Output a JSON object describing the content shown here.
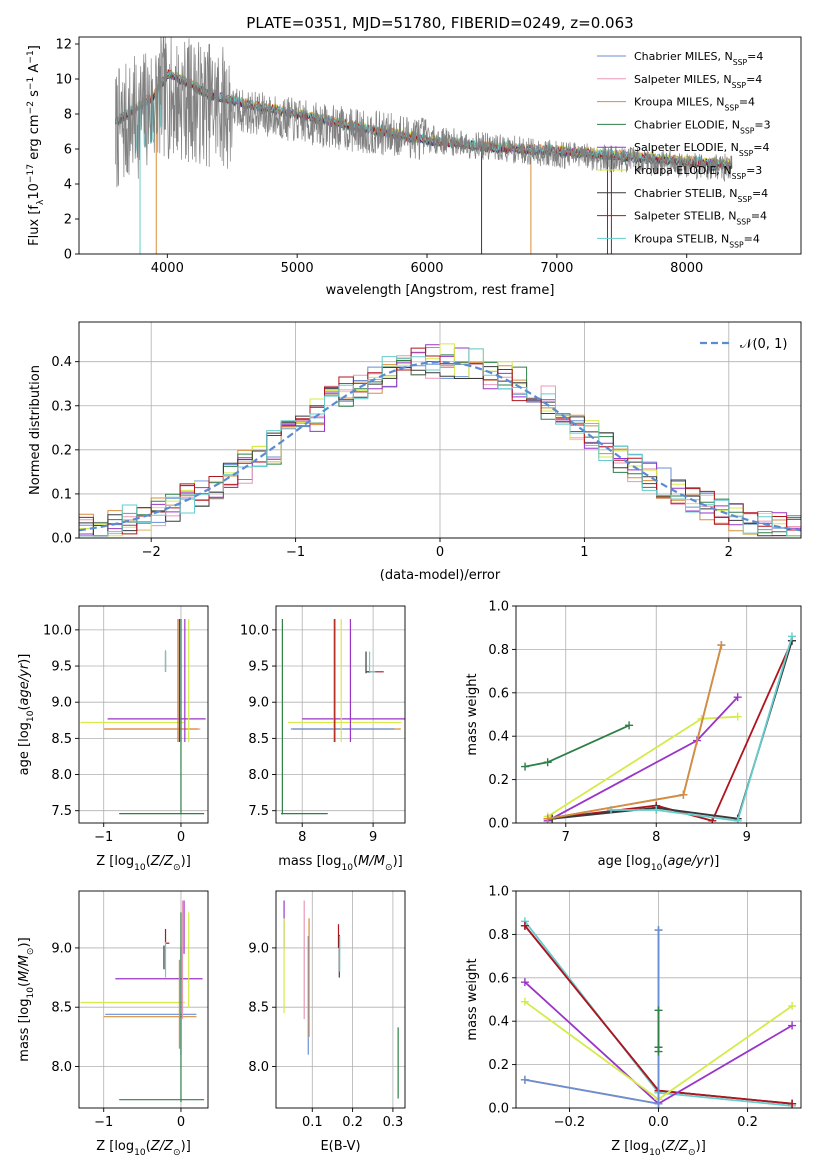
{
  "colors": {
    "Chabrier MILES": "#6a8fd6",
    "Salpeter MILES": "#e89ab8",
    "Kroupa MILES": "#d98d3a",
    "Chabrier ELODIE": "#2f7f48",
    "Salpeter ELODIE": "#9a35c8",
    "Kroupa ELODIE": "#d6ea4a",
    "Chabrier STELIB": "#3a3a3a",
    "Salpeter STELIB": "#b0141e",
    "Kroupa STELIB": "#66cccc"
  },
  "chart_data": [
    {
      "id": "spectrum",
      "type": "line",
      "title": "PLATE=0351, MJD=51780, FIBERID=0249, z=0.063",
      "xlabel": "wavelength [Angstrom, rest frame]",
      "ylabel": "Flux [f_λ10^-17 erg cm^-2 s^-1 A^-1]",
      "xlim": [
        3320,
        8880
      ],
      "ylim": [
        0,
        12.4
      ],
      "xticks": [
        4000,
        5000,
        6000,
        7000,
        8000
      ],
      "yticks": [
        0,
        2,
        4,
        6,
        8,
        10,
        12
      ],
      "grid": false,
      "legend_position": "top-right",
      "legend": [
        {
          "name": "Chabrier MILES",
          "nssp": "4"
        },
        {
          "name": "Salpeter MILES",
          "nssp": "4"
        },
        {
          "name": "Kroupa MILES",
          "nssp": "4"
        },
        {
          "name": "Chabrier ELODIE",
          "nssp": "3"
        },
        {
          "name": "Salpeter ELODIE",
          "nssp": "4"
        },
        {
          "name": "Kroupa ELODIE",
          "nssp": "3"
        },
        {
          "name": "Chabrier STELIB",
          "nssp": "4"
        },
        {
          "name": "Salpeter STELIB",
          "nssp": "4"
        },
        {
          "name": "Kroupa STELIB",
          "nssp": "4"
        }
      ],
      "data_series": {
        "name": "data",
        "x_range": [
          3600,
          8350
        ],
        "continuum": [
          [
            3600,
            7.0
          ],
          [
            3800,
            8.0
          ],
          [
            3950,
            9.0
          ],
          [
            4100,
            8.9
          ],
          [
            4500,
            8.3
          ],
          [
            5000,
            7.6
          ],
          [
            5500,
            7.0
          ],
          [
            6000,
            6.6
          ],
          [
            6500,
            6.1
          ],
          [
            7000,
            5.7
          ],
          [
            7500,
            5.4
          ],
          [
            8000,
            5.1
          ],
          [
            8350,
            4.9
          ]
        ]
      },
      "models_continuum": [
        [
          3600,
          7.6
        ],
        [
          3700,
          8.0
        ],
        [
          3900,
          9.1
        ],
        [
          4000,
          10.3
        ],
        [
          4100,
          10.0
        ],
        [
          4300,
          9.2
        ],
        [
          4600,
          8.6
        ],
        [
          5000,
          8.0
        ],
        [
          5500,
          7.2
        ],
        [
          6000,
          6.5
        ],
        [
          6500,
          6.1
        ],
        [
          7000,
          5.9
        ],
        [
          7500,
          5.6
        ],
        [
          8000,
          5.3
        ],
        [
          8350,
          5.1
        ]
      ]
    },
    {
      "id": "residuals",
      "type": "histogram",
      "xlabel": "(data-model)/error",
      "ylabel": "Normed distribution",
      "xlim": [
        -2.5,
        2.5
      ],
      "ylim": [
        0,
        0.49
      ],
      "xticks": [
        -2,
        -1,
        0,
        1,
        2
      ],
      "yticks": [
        0.0,
        0.1,
        0.2,
        0.3,
        0.4
      ],
      "grid": true,
      "legend_position": "top-right",
      "reference_curve": {
        "name": "N(0,1)",
        "mean": 0,
        "sigma": 1
      },
      "bin_width": 0.1
    },
    {
      "id": "age-vs-Z",
      "type": "errorbar",
      "xlabel": "Z [log10(Z/Z⊙)]",
      "ylabel": "age  [log10(age/yr)]",
      "xlim": [
        -1.32,
        0.35
      ],
      "ylim": [
        7.33,
        10.33
      ],
      "xticks": [
        -1,
        0
      ],
      "yticks": [
        7.5,
        8.0,
        8.5,
        9.0,
        9.5,
        10.0
      ],
      "grid": true,
      "points": [
        {
          "series": "Kroupa ELODIE",
          "x": -0.3,
          "xerr": [
            1.0,
            0.35
          ],
          "y": 8.72,
          "yerr": 0
        },
        {
          "series": "Salpeter ELODIE",
          "x": 0.0,
          "xerr": [
            0.95,
            0.32
          ],
          "y": 8.77,
          "yerr": 0
        },
        {
          "series": "Salpeter MILES",
          "x": 0.0,
          "xerr": [
            0.98,
            0.25
          ],
          "y": 8.63,
          "yerr": 0
        },
        {
          "series": "Kroupa MILES",
          "x": 0.0,
          "xerr": [
            1.0,
            0.22
          ],
          "y": 8.63,
          "yerr": 0
        },
        {
          "series": "Chabrier ELODIE",
          "x": -0.05,
          "xerr": [
            0.75,
            0.35
          ],
          "y": 7.46,
          "yerr": 0
        },
        {
          "series": "Chabrier STELIB",
          "x": -0.2,
          "xerr": [
            0.0,
            0.0
          ],
          "y": 9.42,
          "yerr": [
            0.0,
            0.28
          ]
        },
        {
          "series": "Kroupa STELIB",
          "x": -0.2,
          "xerr": [
            0.0,
            0.0
          ],
          "y": 9.42,
          "yerr": [
            0.0,
            0.3
          ]
        },
        {
          "series": "Salpeter STELIB",
          "x": -0.02,
          "xerr": 0,
          "y": 9.3,
          "yerr": [
            0.85,
            0.85
          ]
        },
        {
          "series": "Chabrier MILES",
          "x": 0.0,
          "xerr": 0,
          "y": 9.3,
          "yerr": [
            0.85,
            0.85
          ]
        },
        {
          "series": "Kroupa ELODIE",
          "x": 0.1,
          "xerr": 0,
          "y": 9.3,
          "yerr": [
            0.85,
            0.85
          ]
        },
        {
          "series": "Salpeter ELODIE",
          "x": 0.05,
          "xerr": 0,
          "y": 9.3,
          "yerr": [
            0.85,
            0.85
          ]
        },
        {
          "series": "Kroupa MILES",
          "x": -0.04,
          "xerr": 0,
          "y": 9.3,
          "yerr": [
            0.85,
            0.85
          ]
        },
        {
          "series": "Chabrier ELODIE",
          "x": 0.0,
          "xerr": 0,
          "y": 8.8,
          "yerr": [
            1.35,
            1.35
          ]
        }
      ]
    },
    {
      "id": "age-vs-mass",
      "type": "errorbar",
      "xlabel": "mass [log10(M/M⊙)]",
      "ylabel": "",
      "xlim": [
        7.63,
        9.45
      ],
      "ylim": [
        7.33,
        10.33
      ],
      "xticks": [
        8,
        9
      ],
      "yticks": [
        7.5,
        8.0,
        8.5,
        9.0,
        9.5,
        10.0
      ],
      "grid": true,
      "points": [
        {
          "series": "Kroupa ELODIE",
          "x": 8.7,
          "xerr": [
            0.9,
            0.7
          ],
          "y": 8.72,
          "yerr": 0
        },
        {
          "series": "Salpeter ELODIE",
          "x": 8.8,
          "xerr": [
            0.8,
            0.65
          ],
          "y": 8.77,
          "yerr": 0
        },
        {
          "series": "Kroupa MILES",
          "x": 8.54,
          "xerr": [
            0.67,
            0.85
          ],
          "y": 8.63,
          "yerr": 0
        },
        {
          "series": "Chabrier MILES",
          "x": 8.44,
          "xerr": [
            0.6,
            0.86
          ],
          "y": 8.63,
          "yerr": 0
        },
        {
          "series": "Chabrier ELODIE",
          "x": 8.0,
          "xerr": [
            0.3,
            0.36
          ],
          "y": 7.46,
          "yerr": 0
        },
        {
          "series": "Salpeter STELIB",
          "x": 9.0,
          "xerr": [
            0.1,
            0.15
          ],
          "y": 9.42,
          "yerr": 0
        },
        {
          "series": "Chabrier STELIB",
          "x": 8.92,
          "xerr": [
            0.0,
            0.05
          ],
          "y": 9.42,
          "yerr": 0
        },
        {
          "series": "Kroupa STELIB",
          "x": 8.95,
          "xerr": [
            0.0,
            0.08
          ],
          "y": 9.42,
          "yerr": 0
        },
        {
          "series": "Chabrier ELODIE",
          "x": 7.72,
          "xerr": 0,
          "y": 8.8,
          "yerr": [
            1.35,
            1.35
          ]
        },
        {
          "series": "Kroupa MILES",
          "x": 8.45,
          "xerr": 0,
          "y": 9.3,
          "yerr": [
            0.85,
            0.85
          ]
        },
        {
          "series": "Salpeter STELIB",
          "x": 8.46,
          "xerr": 0,
          "y": 9.3,
          "yerr": [
            0.85,
            0.85
          ]
        },
        {
          "series": "Kroupa ELODIE",
          "x": 8.55,
          "xerr": 0,
          "y": 9.3,
          "yerr": [
            0.85,
            0.85
          ]
        },
        {
          "series": "Salpeter ELODIE",
          "x": 8.68,
          "xerr": 0,
          "y": 9.3,
          "yerr": [
            0.85,
            0.85
          ]
        },
        {
          "series": "Chabrier STELIB",
          "x": 8.9,
          "xerr": 0,
          "y": 9.55,
          "yerr": [
            0.15,
            0.15
          ]
        },
        {
          "series": "Kroupa STELIB",
          "x": 8.95,
          "xerr": 0,
          "y": 9.55,
          "yerr": [
            0.15,
            0.15
          ]
        }
      ]
    },
    {
      "id": "massweight-vs-age",
      "type": "line",
      "xlabel": "age  [log10(age/yr)]",
      "ylabel": "mass weight",
      "xlim": [
        6.45,
        9.6
      ],
      "ylim": [
        0,
        1.0
      ],
      "xticks": [
        7,
        8,
        9
      ],
      "yticks": [
        0.0,
        0.2,
        0.4,
        0.6,
        0.8,
        1.0
      ],
      "grid": true,
      "series": [
        {
          "series": "Chabrier ELODIE",
          "x": [
            6.55,
            6.8,
            7.7
          ],
          "y": [
            0.26,
            0.28,
            0.45
          ]
        },
        {
          "series": "Kroupa ELODIE",
          "x": [
            6.8,
            8.5,
            8.9
          ],
          "y": [
            0.03,
            0.48,
            0.49
          ]
        },
        {
          "series": "Salpeter ELODIE",
          "x": [
            6.8,
            8.45,
            8.9
          ],
          "y": [
            0.01,
            0.38,
            0.58
          ]
        },
        {
          "series": "Salpeter STELIB",
          "x": [
            6.8,
            8.0,
            8.62,
            9.5
          ],
          "y": [
            0.02,
            0.08,
            0.01,
            0.84
          ]
        },
        {
          "series": "Chabrier STELIB",
          "x": [
            6.85,
            8.0,
            8.9,
            9.5
          ],
          "y": [
            0.02,
            0.07,
            0.02,
            0.84
          ]
        },
        {
          "series": "Kroupa STELIB",
          "x": [
            7.5,
            8.0,
            8.9,
            9.5
          ],
          "y": [
            0.06,
            0.06,
            0.01,
            0.86
          ]
        },
        {
          "series": "Chabrier MILES",
          "x": [
            6.8,
            8.3,
            8.72
          ],
          "y": [
            0.02,
            0.13,
            0.82
          ]
        },
        {
          "series": "Kroupa MILES",
          "x": [
            6.8,
            8.3,
            8.72
          ],
          "y": [
            0.02,
            0.13,
            0.82
          ]
        }
      ]
    },
    {
      "id": "mass-vs-Z",
      "type": "errorbar",
      "xlabel": "Z [log10(Z/Z⊙)]",
      "ylabel": "mass [log10(M/M⊙)]",
      "xlim": [
        -1.32,
        0.35
      ],
      "ylim": [
        7.65,
        9.48
      ],
      "xticks": [
        -1,
        0
      ],
      "yticks": [
        8.0,
        8.5,
        9.0
      ],
      "grid": true,
      "points": [
        {
          "series": "Kroupa ELODIE",
          "x": -0.3,
          "xerr": [
            1.0,
            0.35
          ],
          "y": 8.54,
          "yerr": 0
        },
        {
          "series": "Salpeter ELODIE",
          "x": 0.0,
          "xerr": [
            0.85,
            0.28
          ],
          "y": 8.74,
          "yerr": 0
        },
        {
          "series": "Chabrier MILES",
          "x": 0.0,
          "xerr": [
            0.98,
            0.2
          ],
          "y": 8.44,
          "yerr": 0
        },
        {
          "series": "Kroupa MILES",
          "x": 0.0,
          "xerr": [
            1.0,
            0.2
          ],
          "y": 8.42,
          "yerr": 0
        },
        {
          "series": "Chabrier ELODIE",
          "x": -0.05,
          "xerr": [
            0.75,
            0.35
          ],
          "y": 7.72,
          "yerr": 0
        },
        {
          "series": "Salpeter STELIB",
          "x": -0.2,
          "xerr": [
            0.0,
            0.05
          ],
          "y": 9.04,
          "yerr": [
            0.0,
            0.12
          ]
        },
        {
          "series": "Kroupa STELIB",
          "x": -0.2,
          "xerr": 0,
          "y": 8.95,
          "yerr": [
            0.2,
            0.1
          ]
        },
        {
          "series": "Chabrier STELIB",
          "x": -0.22,
          "xerr": 0,
          "y": 8.92,
          "yerr": [
            0.1,
            0.1
          ]
        },
        {
          "series": "Chabrier MILES",
          "x": 0.0,
          "xerr": 0,
          "y": 8.5,
          "yerr": [
            0.4,
            0.5
          ]
        },
        {
          "series": "Salpeter MILES",
          "x": 0.02,
          "xerr": 0,
          "y": 8.9,
          "yerr": [
            0.5,
            0.5
          ]
        },
        {
          "series": "Kroupa ELODIE",
          "x": 0.1,
          "xerr": 0,
          "y": 8.8,
          "yerr": [
            0.3,
            0.5
          ]
        },
        {
          "series": "Salpeter ELODIE",
          "x": 0.04,
          "xerr": 0,
          "y": 9.2,
          "yerr": [
            0.25,
            0.2
          ]
        },
        {
          "series": "Kroupa MILES",
          "x": -0.02,
          "xerr": 0,
          "y": 8.45,
          "yerr": [
            0.3,
            0.45
          ]
        },
        {
          "series": "Chabrier ELODIE",
          "x": 0.0,
          "xerr": 0,
          "y": 8.4,
          "yerr": [
            0.7,
            0.9
          ]
        }
      ]
    },
    {
      "id": "mass-vs-EBV",
      "type": "errorbar",
      "xlabel": "E(B-V)",
      "ylabel": "",
      "xlim": [
        0.01,
        0.33
      ],
      "ylim": [
        7.65,
        9.48
      ],
      "xticks": [
        0.1,
        0.2,
        0.3
      ],
      "yticks": [
        8.0,
        8.5,
        9.0
      ],
      "grid": true,
      "points": [
        {
          "series": "Salpeter ELODIE",
          "x": 0.03,
          "xerr": 0,
          "y": 9.2,
          "yerr": [
            0.2,
            0.2
          ]
        },
        {
          "series": "Kroupa ELODIE",
          "x": 0.03,
          "xerr": 0,
          "y": 8.85,
          "yerr": [
            0.4,
            0.4
          ]
        },
        {
          "series": "Salpeter MILES",
          "x": 0.08,
          "xerr": 0,
          "y": 8.9,
          "yerr": [
            0.5,
            0.5
          ]
        },
        {
          "series": "Chabrier MILES",
          "x": 0.09,
          "xerr": 0,
          "y": 8.6,
          "yerr": [
            0.5,
            0.5
          ]
        },
        {
          "series": "Kroupa MILES",
          "x": 0.092,
          "xerr": 0,
          "y": 8.75,
          "yerr": [
            0.5,
            0.5
          ]
        },
        {
          "series": "Salpeter STELIB",
          "x": 0.165,
          "xerr": 0,
          "y": 9.1,
          "yerr": [
            0.1,
            0.1
          ]
        },
        {
          "series": "Chabrier STELIB",
          "x": 0.167,
          "xerr": 0,
          "y": 8.93,
          "yerr": [
            0.18,
            0.18
          ]
        },
        {
          "series": "Kroupa STELIB",
          "x": 0.168,
          "xerr": 0,
          "y": 8.95,
          "yerr": [
            0.15,
            0.15
          ]
        },
        {
          "series": "Chabrier ELODIE",
          "x": 0.313,
          "xerr": 0,
          "y": 8.03,
          "yerr": [
            0.3,
            0.3
          ]
        }
      ]
    },
    {
      "id": "massweight-vs-Z",
      "type": "line",
      "xlabel": "Z [log10(Z/Z⊙)]",
      "ylabel": "mass weight",
      "xlim": [
        -0.32,
        0.32
      ],
      "ylim": [
        0,
        1.0
      ],
      "xticks": [
        -0.2,
        0.0,
        0.2
      ],
      "yticks": [
        0.0,
        0.2,
        0.4,
        0.6,
        0.8,
        1.0
      ],
      "grid": true,
      "series": [
        {
          "series": "Chabrier STELIB",
          "x": [
            -0.3,
            0.0,
            0.3
          ],
          "y": [
            0.84,
            0.08,
            0.02
          ]
        },
        {
          "series": "Kroupa STELIB",
          "x": [
            -0.3,
            0.0,
            0.3
          ],
          "y": [
            0.86,
            0.07,
            0.01
          ]
        },
        {
          "series": "Salpeter STELIB",
          "x": [
            -0.3,
            0.0,
            0.3
          ],
          "y": [
            0.84,
            0.08,
            0.02
          ]
        },
        {
          "series": "Salpeter ELODIE",
          "x": [
            -0.3,
            0.0,
            0.3
          ],
          "y": [
            0.58,
            0.02,
            0.38
          ]
        },
        {
          "series": "Kroupa ELODIE",
          "x": [
            -0.3,
            0.0,
            0.3
          ],
          "y": [
            0.49,
            0.04,
            0.47
          ]
        },
        {
          "series": "Kroupa MILES",
          "x": [
            -0.3,
            0.0,
            0.0
          ],
          "y": [
            0.13,
            0.02,
            0.82
          ]
        },
        {
          "series": "Chabrier MILES",
          "x": [
            -0.3,
            0.0,
            0.0
          ],
          "y": [
            0.13,
            0.02,
            0.82
          ]
        },
        {
          "series": "Chabrier ELODIE",
          "x": [
            0.0,
            0.0,
            0.0
          ],
          "y": [
            0.26,
            0.28,
            0.45
          ]
        }
      ]
    }
  ]
}
